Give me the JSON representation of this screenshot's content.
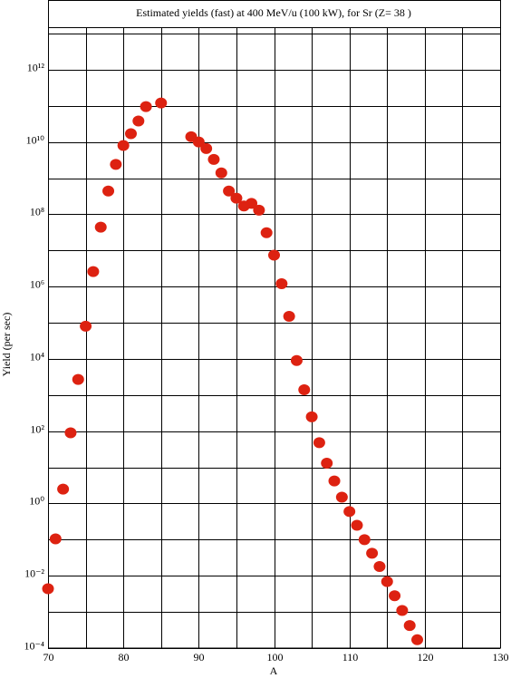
{
  "chart_data": {
    "type": "scatter",
    "title": "Estimated yields (fast) at 400 MeV/u (100 kW), for Sr (Z= 38 )",
    "x_label": "A",
    "y_label": "Yield (per sec)",
    "color": "#dd2211",
    "log_y": true,
    "grid": true,
    "xlim": [
      70,
      130
    ],
    "xticks": [
      70,
      80,
      90,
      100,
      110,
      120,
      130
    ],
    "x_minor_ticks": [
      75,
      85,
      95,
      105,
      115,
      125
    ],
    "ylim": [
      0.0001,
      10000000000000
    ],
    "yticks": [
      {
        "value": 0.0001,
        "label": "10⁻⁴"
      },
      {
        "value": 0.01,
        "label": "10⁻²"
      },
      {
        "value": 1,
        "label": "10⁰"
      },
      {
        "value": 100,
        "label": "10²"
      },
      {
        "value": 10000,
        "label": "10⁴"
      },
      {
        "value": 1000000,
        "label": "10⁶"
      },
      {
        "value": 100000000,
        "label": "10⁸"
      },
      {
        "value": 10000000000,
        "label": "10¹⁰"
      },
      {
        "value": 1000000000000,
        "label": "10¹²"
      }
    ],
    "y_minor_ticks": [
      0.001,
      0.1,
      10,
      1000,
      100000,
      10000000,
      1000000000,
      100000000000,
      10000000000000
    ],
    "x": [
      70,
      71,
      72,
      73,
      74,
      75,
      76,
      77,
      78,
      79,
      80,
      81,
      82,
      83,
      85,
      89,
      90,
      91,
      92,
      93,
      94,
      95,
      96,
      97,
      98,
      99,
      100,
      101,
      102,
      103,
      104,
      105,
      106,
      107,
      108,
      109,
      110,
      111,
      112,
      113,
      114,
      115,
      116,
      117,
      118,
      119
    ],
    "values": [
      0.0044,
      0.105,
      2.5,
      90,
      2700,
      80000,
      2600000,
      44000000,
      440000000,
      2400000000,
      8000000000,
      17000000000,
      38000000000,
      95000000000,
      120000000000,
      14000000000,
      10000000000,
      6600000000,
      3300000000,
      1400000000,
      440000000,
      280000000,
      170000000,
      200000000,
      130000000,
      31000000,
      7400000,
      1200000,
      150000,
      9000,
      1400,
      250,
      48,
      13,
      4.2,
      1.5,
      0.6,
      0.25,
      0.1,
      0.042,
      0.018,
      0.0069,
      0.0028,
      0.0011,
      0.00042,
      0.00017
    ]
  }
}
